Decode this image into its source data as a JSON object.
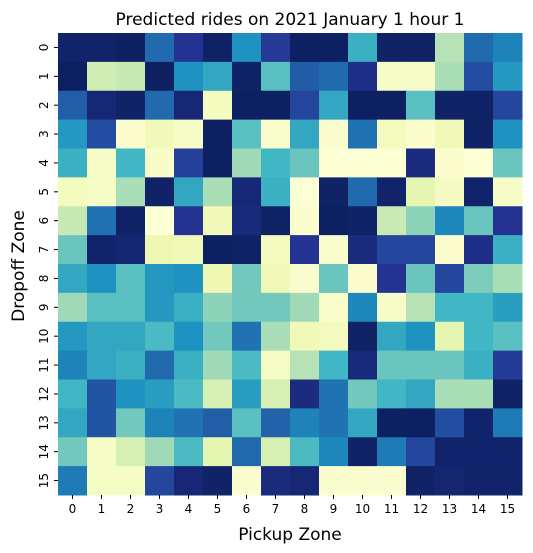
{
  "chart_data": {
    "type": "heatmap",
    "title": "Predicted rides on 2021 January 1 hour 1",
    "xlabel": "Pickup Zone",
    "ylabel": "Dropoff Zone",
    "x_categories": [
      "0",
      "1",
      "2",
      "3",
      "4",
      "5",
      "6",
      "7",
      "8",
      "9",
      "10",
      "11",
      "12",
      "13",
      "14",
      "15"
    ],
    "y_categories": [
      "0",
      "1",
      "2",
      "3",
      "4",
      "5",
      "6",
      "7",
      "8",
      "9",
      "10",
      "11",
      "12",
      "13",
      "14",
      "15"
    ],
    "colormap": "YlGnBu",
    "value_range": [
      0,
      1
    ],
    "colorbar": false,
    "grid": false,
    "values": [
      [
        0.96,
        0.96,
        0.98,
        0.72,
        0.88,
        0.97,
        0.62,
        0.86,
        0.98,
        0.98,
        0.52,
        0.97,
        0.97,
        0.28,
        0.72,
        0.66
      ],
      [
        0.98,
        0.22,
        0.25,
        0.98,
        0.62,
        0.55,
        0.97,
        0.45,
        0.76,
        0.72,
        0.9,
        0.06,
        0.05,
        0.3,
        0.8,
        0.6
      ],
      [
        0.75,
        0.94,
        0.97,
        0.72,
        0.94,
        0.08,
        0.98,
        0.98,
        0.82,
        0.55,
        0.98,
        0.98,
        0.45,
        0.97,
        0.97,
        0.82
      ],
      [
        0.6,
        0.8,
        0.03,
        0.1,
        0.06,
        0.98,
        0.45,
        0.04,
        0.55,
        0.03,
        0.7,
        0.08,
        0.03,
        0.1,
        0.97,
        0.62
      ],
      [
        0.52,
        0.06,
        0.5,
        0.05,
        0.84,
        0.98,
        0.32,
        0.5,
        0.42,
        0.02,
        0.02,
        0.02,
        0.92,
        0.03,
        0.02,
        0.42
      ],
      [
        0.08,
        0.06,
        0.3,
        0.97,
        0.55,
        0.3,
        0.94,
        0.52,
        0.02,
        0.97,
        0.72,
        0.96,
        0.15,
        0.07,
        0.96,
        0.06
      ],
      [
        0.25,
        0.7,
        0.97,
        0.02,
        0.88,
        0.1,
        0.93,
        0.97,
        0.03,
        0.98,
        0.97,
        0.24,
        0.35,
        0.65,
        0.42,
        0.88
      ],
      [
        0.42,
        0.96,
        0.95,
        0.12,
        0.1,
        0.98,
        0.97,
        0.08,
        0.88,
        0.04,
        0.92,
        0.82,
        0.82,
        0.03,
        0.9,
        0.52
      ],
      [
        0.55,
        0.62,
        0.45,
        0.6,
        0.62,
        0.12,
        0.4,
        0.1,
        0.04,
        0.42,
        0.03,
        0.88,
        0.42,
        0.82,
        0.38,
        0.3
      ],
      [
        0.32,
        0.45,
        0.45,
        0.6,
        0.52,
        0.35,
        0.4,
        0.4,
        0.32,
        0.04,
        0.65,
        0.05,
        0.28,
        0.5,
        0.5,
        0.58
      ],
      [
        0.6,
        0.55,
        0.55,
        0.48,
        0.62,
        0.4,
        0.7,
        0.3,
        0.1,
        0.08,
        0.97,
        0.55,
        0.62,
        0.15,
        0.5,
        0.45
      ],
      [
        0.66,
        0.55,
        0.52,
        0.72,
        0.52,
        0.32,
        0.48,
        0.06,
        0.28,
        0.5,
        0.93,
        0.42,
        0.42,
        0.42,
        0.52,
        0.85
      ],
      [
        0.5,
        0.78,
        0.62,
        0.58,
        0.48,
        0.2,
        0.58,
        0.2,
        0.92,
        0.7,
        0.4,
        0.5,
        0.55,
        0.3,
        0.3,
        0.97
      ],
      [
        0.55,
        0.78,
        0.4,
        0.66,
        0.7,
        0.75,
        0.45,
        0.74,
        0.66,
        0.7,
        0.55,
        0.98,
        0.98,
        0.8,
        0.96,
        0.68
      ],
      [
        0.4,
        0.06,
        0.2,
        0.32,
        0.48,
        0.15,
        0.72,
        0.2,
        0.48,
        0.65,
        0.97,
        0.68,
        0.82,
        0.96,
        0.96,
        0.96
      ],
      [
        0.68,
        0.06,
        0.06,
        0.82,
        0.94,
        0.97,
        0.03,
        0.92,
        0.94,
        0.03,
        0.03,
        0.03,
        0.97,
        0.95,
        0.96,
        0.96
      ]
    ]
  }
}
